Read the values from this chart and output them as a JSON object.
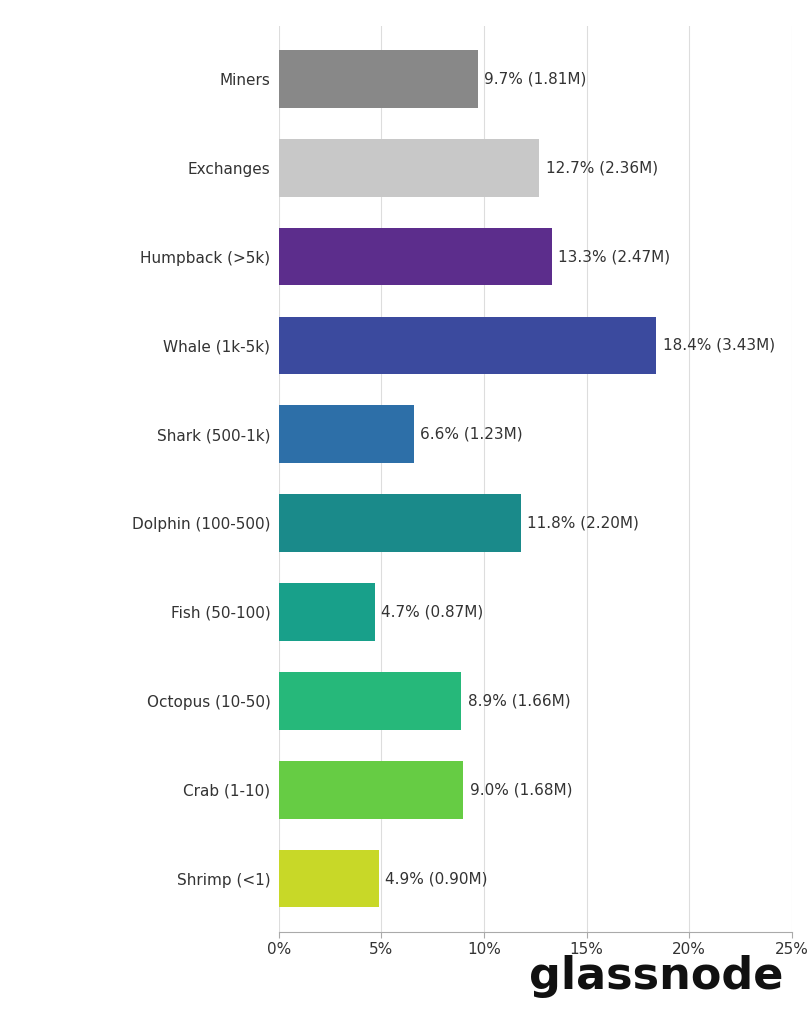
{
  "categories": [
    "Miners",
    "Exchanges",
    "Humpback (>5k)",
    "Whale (1k-5k)",
    "Shark (500-1k)",
    "Dolphin (100-500)",
    "Fish (50-100)",
    "Octopus (10-50)",
    "Crab (1-10)",
    "Shrimp (<1)"
  ],
  "values": [
    9.7,
    12.7,
    13.3,
    18.4,
    6.6,
    11.8,
    4.7,
    8.9,
    9.0,
    4.9
  ],
  "labels": [
    "9.7% (1.81M)",
    "12.7% (2.36M)",
    "13.3% (2.47M)",
    "18.4% (3.43M)",
    "6.6% (1.23M)",
    "11.8% (2.20M)",
    "4.7% (0.87M)",
    "8.9% (1.66M)",
    "9.0% (1.68M)",
    "4.9% (0.90M)"
  ],
  "colors": [
    "#888888",
    "#c8c8c8",
    "#5c2d8c",
    "#3b4a9e",
    "#2d6fa8",
    "#1a8a8a",
    "#18a08a",
    "#26b87a",
    "#66cc44",
    "#c8d828"
  ],
  "xlim": [
    0,
    25
  ],
  "xtick_labels": [
    "0%",
    "5%",
    "10%",
    "15%",
    "20%",
    "25%"
  ],
  "xtick_values": [
    0,
    5,
    10,
    15,
    20,
    25
  ],
  "background_color": "#ffffff",
  "plot_bg_color": "#ffffff",
  "watermark": "glassnode",
  "bar_height": 0.65,
  "label_fontsize": 11,
  "ytick_fontsize": 11,
  "xtick_fontsize": 11,
  "watermark_fontsize": 32,
  "watermark_color": "#111111"
}
